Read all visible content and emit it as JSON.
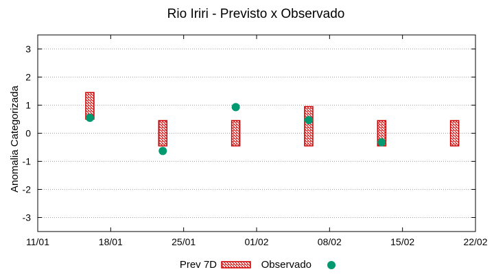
{
  "chart_data": {
    "type": "scatter",
    "title": "Rio Iriri - Previsto x Observado",
    "xlabel": "",
    "ylabel": "Anomalia Categorizada",
    "x_ticks": [
      "11/01",
      "18/01",
      "25/01",
      "01/02",
      "08/02",
      "15/02",
      "22/02"
    ],
    "y_ticks": [
      "3",
      "2",
      "1",
      "0",
      "-1",
      "-2",
      "-3"
    ],
    "ylim": [
      -3.5,
      3.5
    ],
    "grid": "horizontal dotted",
    "legend_placement": "bottom-center",
    "series": [
      {
        "name": "Prev 7D",
        "kind": "range-box",
        "color": "#cc0000",
        "points": [
          {
            "date": "16/01",
            "low": 0.5,
            "high": 1.45
          },
          {
            "date": "23/01",
            "low": -0.45,
            "high": 0.45
          },
          {
            "date": "30/01",
            "low": -0.45,
            "high": 0.45
          },
          {
            "date": "06/02",
            "low": -0.45,
            "high": 0.95
          },
          {
            "date": "13/02",
            "low": -0.45,
            "high": 0.45
          },
          {
            "date": "20/02",
            "low": -0.45,
            "high": 0.45
          }
        ]
      },
      {
        "name": "Observado",
        "kind": "point",
        "color": "#009970",
        "points": [
          {
            "date": "16/01",
            "value": 0.55
          },
          {
            "date": "23/01",
            "value": -0.63
          },
          {
            "date": "30/01",
            "value": 0.93
          },
          {
            "date": "06/02",
            "value": 0.47
          },
          {
            "date": "13/02",
            "value": -0.32
          }
        ]
      }
    ]
  }
}
